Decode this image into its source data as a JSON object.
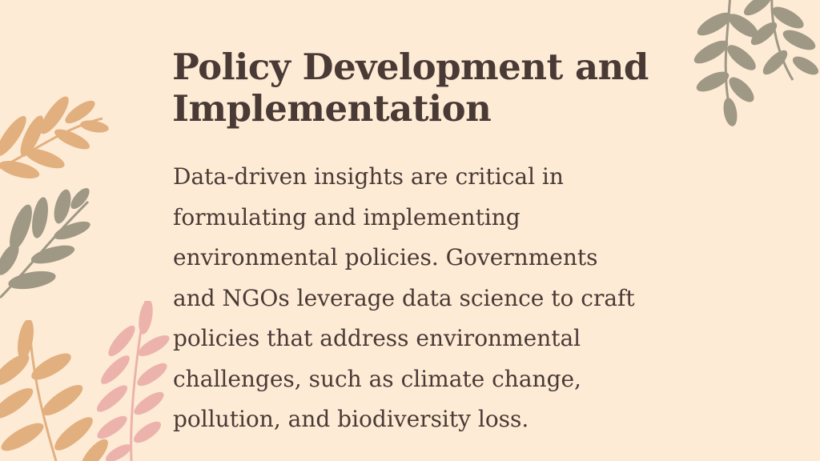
{
  "slide": {
    "title": "Policy Development and\nImplementation",
    "body": "Data-driven insights are critical in\nformulating and implementing\nenvironmental policies. Governments\nand NGOs leverage data science to craft\npolicies that address environmental\nchallenges, such as climate change,\npollution, and biodiversity loss."
  },
  "colors": {
    "background": "#fdebd6",
    "text": "#4a3a35",
    "leaf_olive": "#9e9884",
    "leaf_tan": "#e2b07f",
    "leaf_pink": "#ecb3ad"
  },
  "decorations": [
    "olive-branch-icon",
    "tan-leaf-branch-icon",
    "olive-leaf-branch-icon",
    "tan-leaf-branch-icon",
    "pink-leaf-branch-icon"
  ]
}
